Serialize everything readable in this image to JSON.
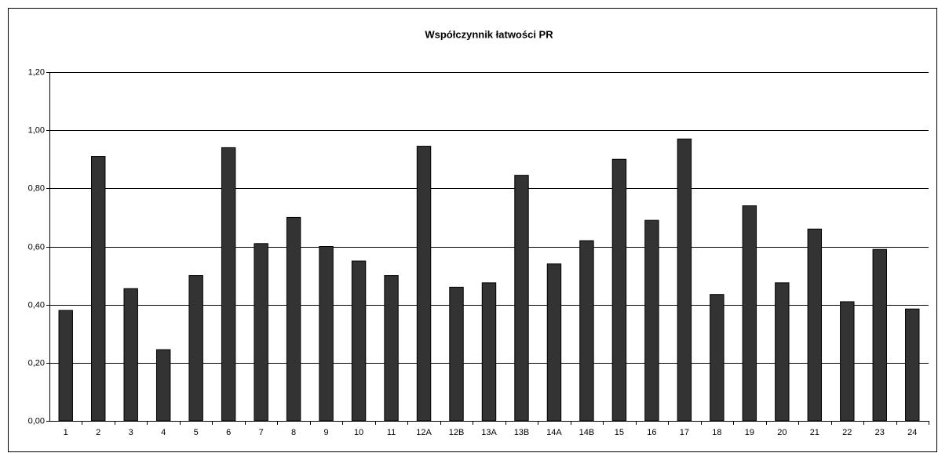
{
  "chart_data": {
    "type": "bar",
    "title": "Współczynnik łatwości PR",
    "categories": [
      "1",
      "2",
      "3",
      "4",
      "5",
      "6",
      "7",
      "8",
      "9",
      "10",
      "11",
      "12A",
      "12B",
      "13A",
      "13B",
      "14A",
      "14B",
      "15",
      "16",
      "17",
      "18",
      "19",
      "20",
      "21",
      "22",
      "23",
      "24"
    ],
    "values": [
      0.38,
      0.91,
      0.455,
      0.245,
      0.5,
      0.94,
      0.61,
      0.7,
      0.6,
      0.55,
      0.5,
      0.945,
      0.46,
      0.475,
      0.845,
      0.54,
      0.62,
      0.9,
      0.69,
      0.97,
      0.435,
      0.74,
      0.475,
      0.66,
      0.41,
      0.59,
      0.385
    ],
    "color": "#333333",
    "ylim": [
      0,
      1.2
    ],
    "yticks": [
      {
        "value": 0,
        "label": "0,00"
      },
      {
        "value": 0.2,
        "label": "0,20"
      },
      {
        "value": 0.4,
        "label": "0,40"
      },
      {
        "value": 0.6,
        "label": "0,60"
      },
      {
        "value": 0.8,
        "label": "0,80"
      },
      {
        "value": 1,
        "label": "1,00"
      },
      {
        "value": 1.2,
        "label": "1,20"
      }
    ],
    "grid": true
  }
}
